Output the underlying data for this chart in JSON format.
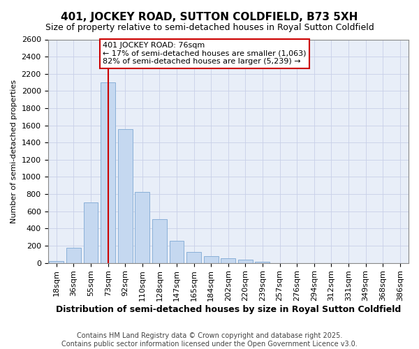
{
  "title": "401, JOCKEY ROAD, SUTTON COLDFIELD, B73 5XH",
  "subtitle": "Size of property relative to semi-detached houses in Royal Sutton Coldfield",
  "xlabel": "Distribution of semi-detached houses by size in Royal Sutton Coldfield",
  "ylabel": "Number of semi-detached properties",
  "categories": [
    "18sqm",
    "36sqm",
    "55sqm",
    "73sqm",
    "92sqm",
    "110sqm",
    "128sqm",
    "147sqm",
    "165sqm",
    "184sqm",
    "202sqm",
    "220sqm",
    "239sqm",
    "257sqm",
    "276sqm",
    "294sqm",
    "312sqm",
    "331sqm",
    "349sqm",
    "368sqm",
    "386sqm"
  ],
  "bar_heights": [
    18,
    175,
    700,
    2100,
    1560,
    825,
    510,
    255,
    125,
    80,
    55,
    35,
    15,
    0,
    0,
    0,
    0,
    0,
    0,
    0,
    0
  ],
  "highlight_index": 3,
  "annotation_line1": "401 JOCKEY ROAD: 76sqm",
  "annotation_line2": "← 17% of semi-detached houses are smaller (1,063)",
  "annotation_line3": "82% of semi-detached houses are larger (5,239) →",
  "bar_facecolor": "#c5d8f0",
  "bar_edgecolor": "#8ab0d8",
  "highlight_color": "#cc0000",
  "ylim_max": 2600,
  "ytick_step": 200,
  "bg_color": "#e8eef8",
  "grid_color": "#c8d0e8",
  "title_fontsize": 11,
  "subtitle_fontsize": 9,
  "ylabel_fontsize": 8,
  "xlabel_fontsize": 9,
  "tick_fontsize": 8,
  "annot_fontsize": 8,
  "footnote_line1": "Contains HM Land Registry data © Crown copyright and database right 2025.",
  "footnote_line2": "Contains public sector information licensed under the Open Government Licence v3.0.",
  "footnote_fontsize": 7
}
